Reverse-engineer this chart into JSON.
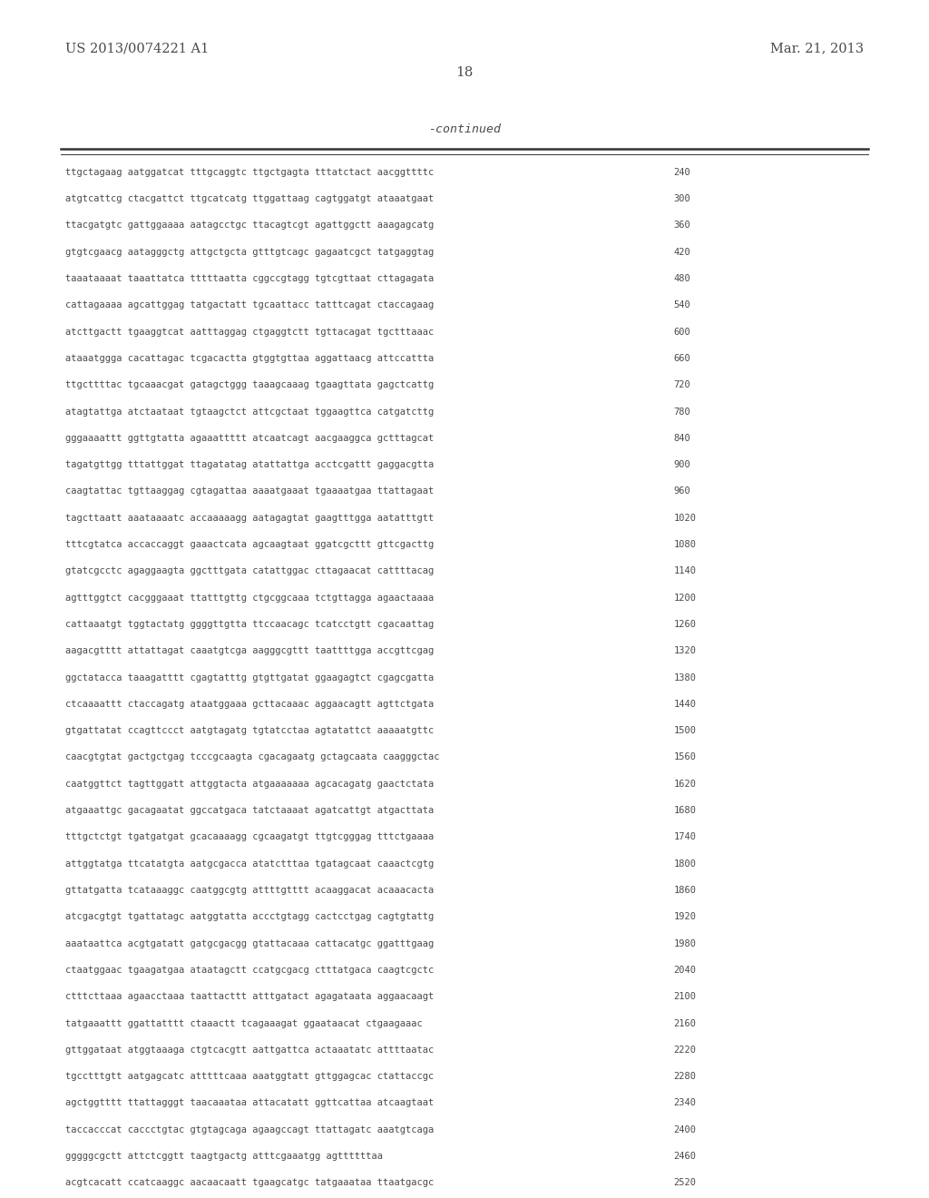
{
  "header_left": "US 2013/0074221 A1",
  "header_right": "Mar. 21, 2013",
  "page_number": "18",
  "continued_label": "-continued",
  "background_color": "#ffffff",
  "text_color": "#4a4a4a",
  "sequence_lines": [
    [
      "ttgctagaag aatggatcat tttgcaggtc ttgctgagta tttatctact aacggttttc",
      "240"
    ],
    [
      "atgtcattcg ctacgattct ttgcatcatg ttggattaag cagtggatgt ataaatgaat",
      "300"
    ],
    [
      "ttacgatgtc gattggaaaa aatagcctgc ttacagtcgt agattggctt aaagagcatg",
      "360"
    ],
    [
      "gtgtcgaacg aatagggctg attgctgcta gtttgtcagc gagaatcgct tatgaggtag",
      "420"
    ],
    [
      "taaataaaat taaattatca tttttaatta cggccgtagg tgtcgttaat cttagagata",
      "480"
    ],
    [
      "cattagaaaa agcattggag tatgactatt tgcaattacc tatttcagat ctaccagaag",
      "540"
    ],
    [
      "atcttgactt tgaaggtcat aatttaggag ctgaggtctt tgttacagat tgctttaaac",
      "600"
    ],
    [
      "ataaatggga cacattagac tcgacactta gtggtgttaa aggattaacg attccattta",
      "660"
    ],
    [
      "ttgcttttac tgcaaacgat gatagctggg taaagcaaag tgaagttata gagctcattg",
      "720"
    ],
    [
      "atagtattga atctaataat tgtaagctct attcgctaat tggaagttca catgatcttg",
      "780"
    ],
    [
      "gggaaaattt ggttgtatta agaaattttt atcaatcagt aacgaaggca gctttagcat",
      "840"
    ],
    [
      "tagatgttgg tttattggat ttagatatag atattattga acctcgattt gaggacgtta",
      "900"
    ],
    [
      "caagtattac tgttaaggag cgtagattaa aaaatgaaat tgaaaatgaa ttattagaat",
      "960"
    ],
    [
      "tagcttaatt aaataaaatc accaaaaagg aatagagtat gaagtttgga aatatttgtt",
      "1020"
    ],
    [
      "tttcgtatca accaccaggt gaaactcata agcaagtaat ggatcgcttt gttcgacttg",
      "1080"
    ],
    [
      "gtatcgcctc agaggaagta ggctttgata catattggac cttagaacat cattttacag",
      "1140"
    ],
    [
      "agtttggtct cacgggaaat ttatttgttg ctgcggcaaa tctgttagga agaactaaaa",
      "1200"
    ],
    [
      "cattaaatgt tggtactatg ggggttgtta ttccaacagc tcatcctgtt cgacaattag",
      "1260"
    ],
    [
      "aagacgtttt attattagat caaatgtcga aagggcgttt taattttgga accgttcgag",
      "1320"
    ],
    [
      "ggctatacca taaagatttt cgagtatttg gtgttgatat ggaagagtct cgagcgatta",
      "1380"
    ],
    [
      "ctcaaaattt ctaccagatg ataatggaaa gcttacaaac aggaacagtt agttctgata",
      "1440"
    ],
    [
      "gtgattatat ccagttccct aatgtagatg tgtatcctaa agtatattct aaaaatgttc",
      "1500"
    ],
    [
      "caacgtgtat gactgctgag tcccgcaagta cgacagaatg gctagcaata caagggctac",
      "1560"
    ],
    [
      "caatggttct tagttggatt attggtacta atgaaaaaaa agcacagatg gaactctata",
      "1620"
    ],
    [
      "atgaaattgc gacagaatat ggccatgaca tatctaaaat agatcattgt atgacttata",
      "1680"
    ],
    [
      "tttgctctgt tgatgatgat gcacaaaagg cgcaagatgt ttgtcgggag tttctgaaaa",
      "1740"
    ],
    [
      "attggtatga ttcatatgta aatgcgacca atatctttaa tgatagcaat caaactcgtg",
      "1800"
    ],
    [
      "gttatgatta tcataaaggc caatggcgtg attttgtttt acaaggacat acaaacacta",
      "1860"
    ],
    [
      "atcgacgtgt tgattatagc aatggtatta accctgtagg cactcctgag cagtgtattg",
      "1920"
    ],
    [
      "aaataattca acgtgatatt gatgcgacgg gtattacaaa cattacatgc ggatttgaag",
      "1980"
    ],
    [
      "ctaatggaac tgaagatgaa ataatagctt ccatgcgacg ctttatgaca caagtcgctc",
      "2040"
    ],
    [
      "ctttcttaaa agaacctaaa taattacttt atttgatact agagataata aggaacaagt",
      "2100"
    ],
    [
      "tatgaaattt ggattatttt ctaaactt tcagaaagat ggaataacat ctgaagaaac",
      "2160"
    ],
    [
      "gttggataat atggtaaaga ctgtcacgtt aattgattca actaaatatc attttaatac",
      "2220"
    ],
    [
      "tgcctttgtt aatgagcatc atttttcaaa aaatggtatt gttggagcac ctattaccgc",
      "2280"
    ],
    [
      "agctggtttt ttattagggt taacaaataa attacatatt ggttcattaa atcaagtaat",
      "2340"
    ],
    [
      "taccacccat caccctgtac gtgtagcaga agaagccagt ttattagatc aaatgtcaga",
      "2400"
    ],
    [
      "gggggcgctt attctcggtt taagtgactg atttcgaaatgg agttttttaa",
      "2460"
    ],
    [
      "acgtcacatt ccatcaaggc aacaacaatt tgaagcatgc tatgaaataa ttaatgacgc",
      "2520"
    ]
  ]
}
